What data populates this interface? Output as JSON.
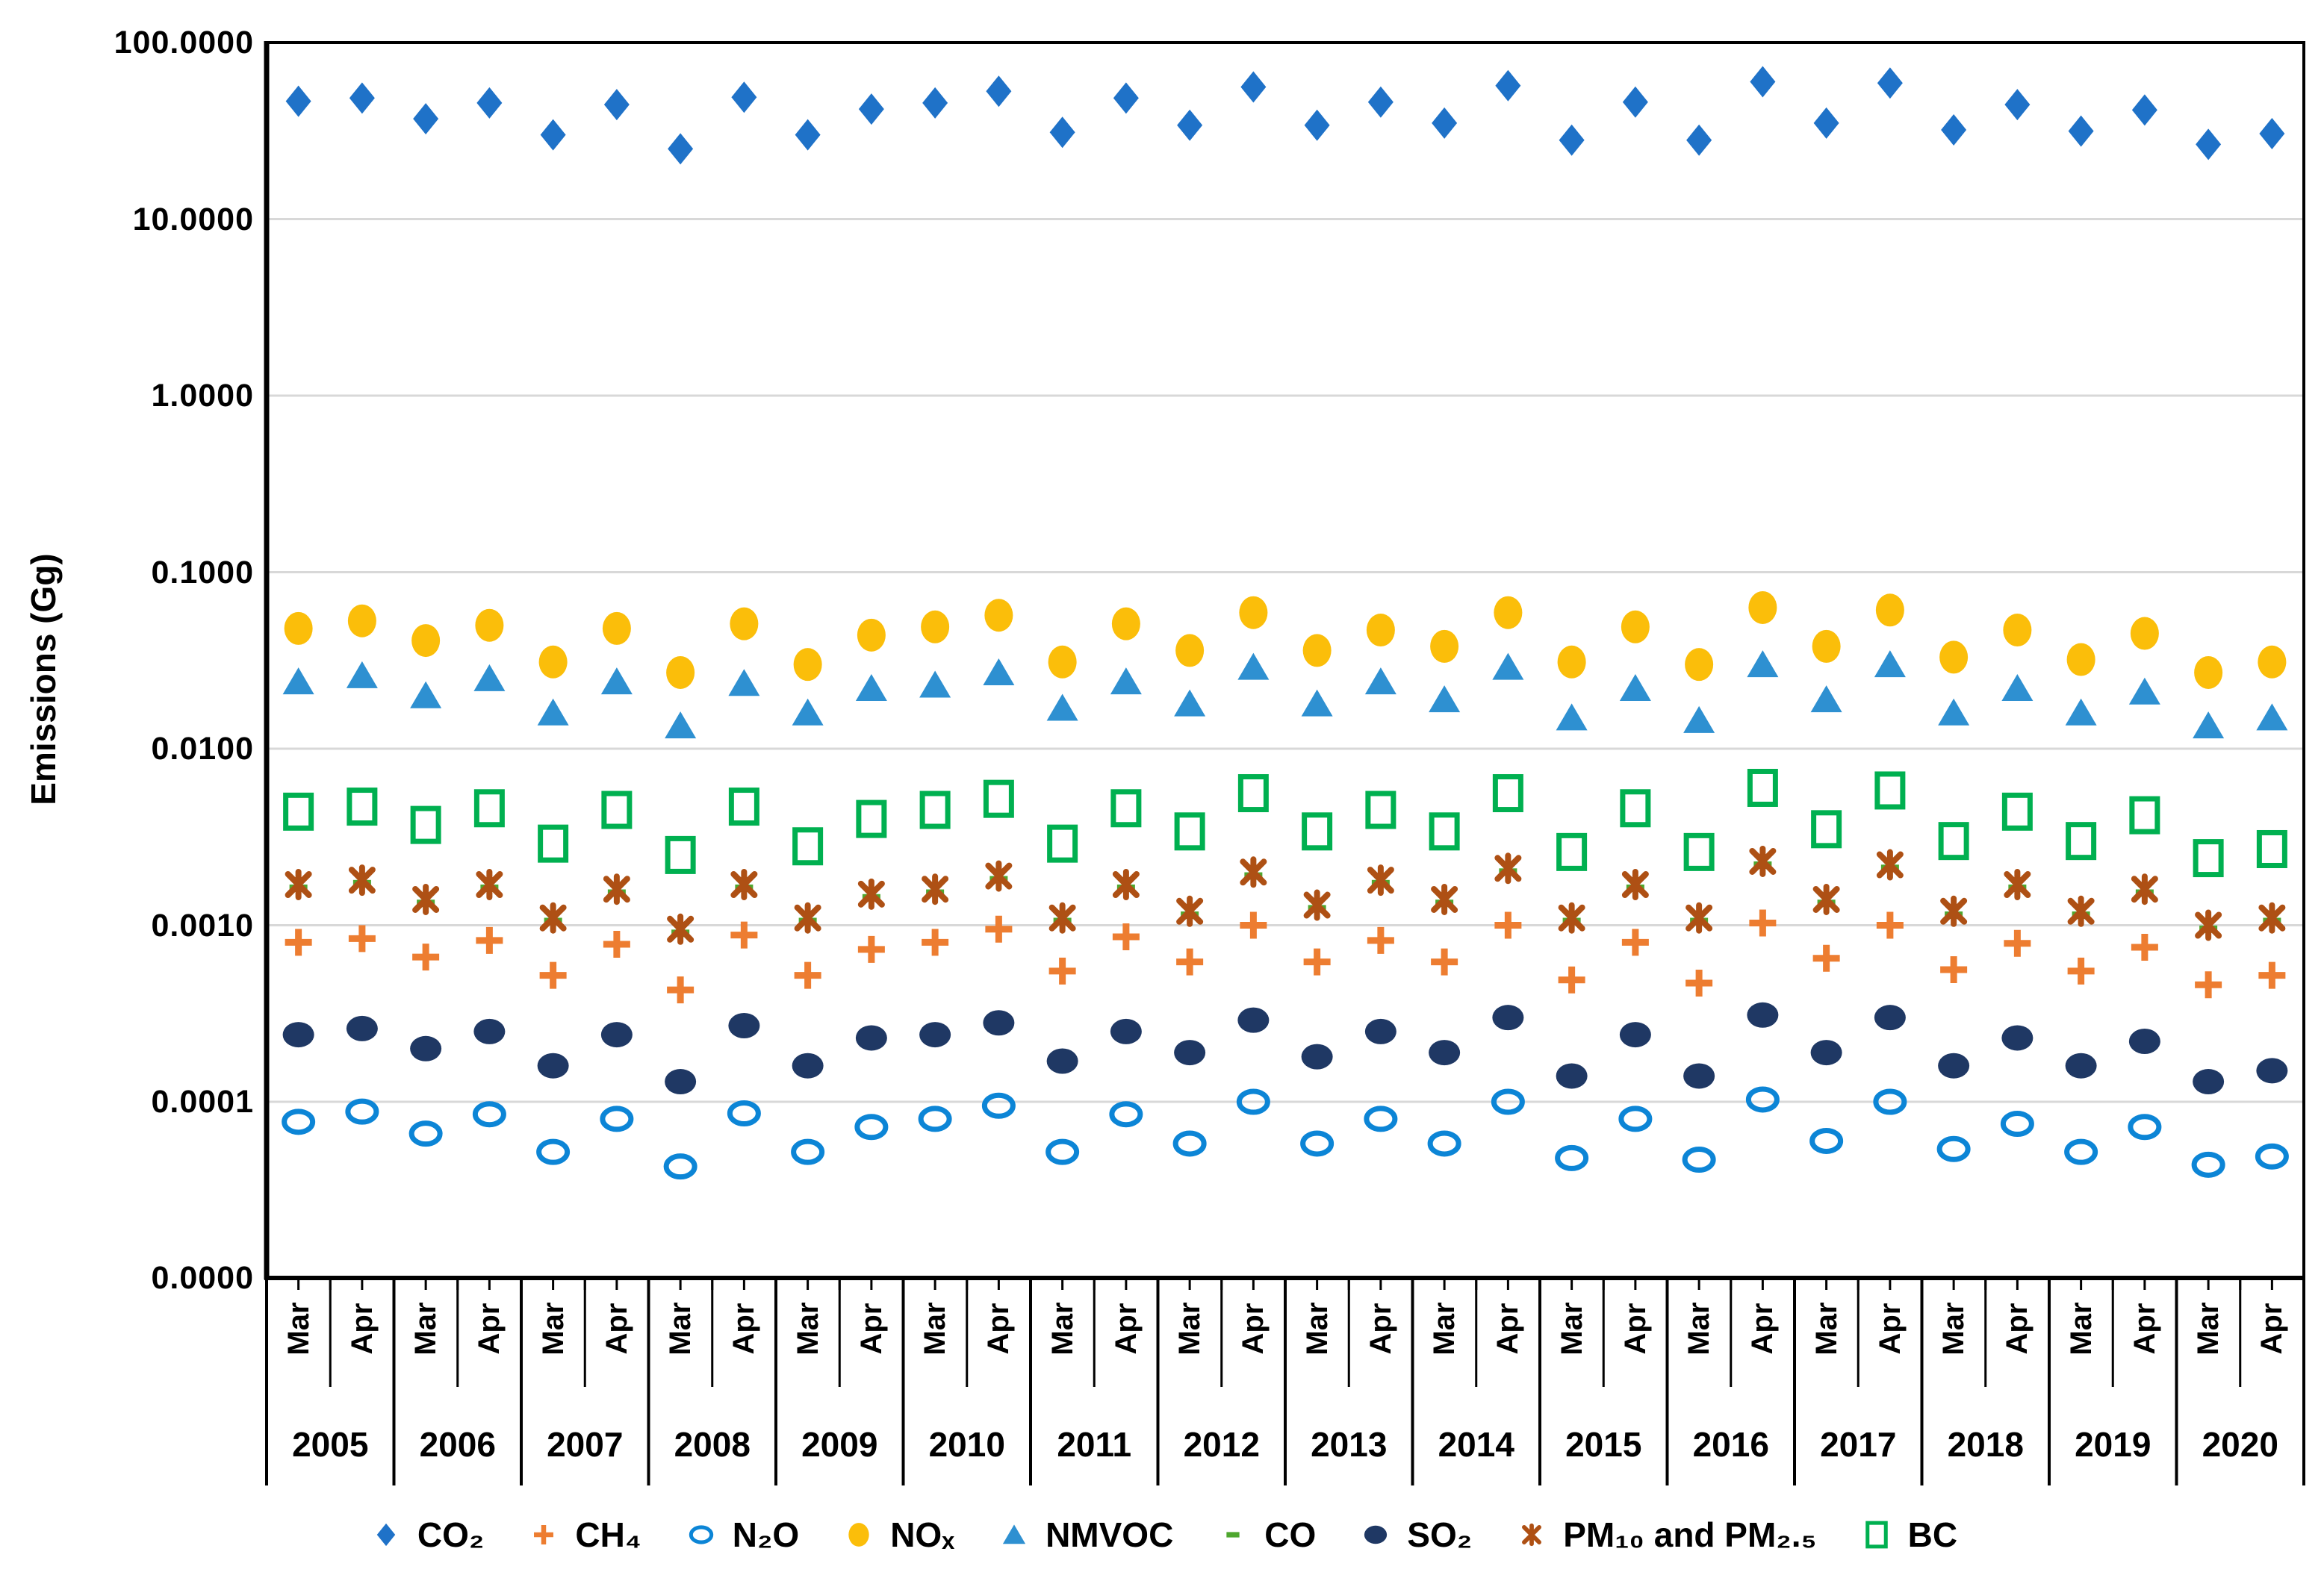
{
  "chart_data": {
    "type": "scatter",
    "title": "",
    "ylabel": "Emissions (Gg)",
    "y_scale": "log",
    "y_top_value": 100,
    "y_tick_labels": [
      "100.0000",
      "10.0000",
      "1.0000",
      "0.1000",
      "0.0100",
      "0.0010",
      "0.0001",
      "0.0000"
    ],
    "y_gridline_values": [
      10,
      1,
      0.1,
      0.01,
      0.001,
      0.0001
    ],
    "grid_color": "#D8D8D8",
    "legend_position": "bottom",
    "x": {
      "years": [
        "2005",
        "2006",
        "2007",
        "2008",
        "2009",
        "2010",
        "2011",
        "2012",
        "2013",
        "2014",
        "2015",
        "2016",
        "2017",
        "2018",
        "2019",
        "2020"
      ],
      "months_per_year": [
        "Mar",
        "Apr"
      ]
    },
    "series": [
      {
        "name": "co2",
        "label": "CO₂",
        "marker": "diamond",
        "color": "#1F72C8",
        "values": [
          46.5,
          48.5,
          37,
          45.5,
          30,
          44.5,
          25,
          49,
          30,
          42,
          45.5,
          53,
          31,
          48.5,
          34,
          56,
          34,
          46,
          35,
          57,
          28,
          46,
          28,
          60,
          35,
          59,
          32,
          44.5,
          31.5,
          41.5,
          26.5,
          30.5
        ]
      },
      {
        "name": "ch4",
        "label": "CH₄",
        "marker": "plus",
        "color": "#ED7D31",
        "values": [
          0.0008,
          0.00084,
          0.00066,
          0.00082,
          0.00052,
          0.00078,
          0.00043,
          0.00088,
          0.00052,
          0.00073,
          0.0008,
          0.00095,
          0.00055,
          0.00086,
          0.00062,
          0.001,
          0.00062,
          0.00082,
          0.00062,
          0.001,
          0.00049,
          0.0008,
          0.00047,
          0.00103,
          0.00065,
          0.001,
          0.00056,
          0.00079,
          0.00055,
          0.00075,
          0.00046,
          0.00052
        ]
      },
      {
        "name": "n2o",
        "label": "N₂O",
        "marker": "open-ellipse",
        "color": "#0C85D6",
        "values": [
          7.7e-05,
          8.8e-05,
          6.6e-05,
          8.5e-05,
          5.2e-05,
          8e-05,
          4.3e-05,
          8.6e-05,
          5.2e-05,
          7.2e-05,
          8e-05,
          9.5e-05,
          5.2e-05,
          8.5e-05,
          5.8e-05,
          0.0001,
          5.8e-05,
          8e-05,
          5.8e-05,
          0.0001,
          4.8e-05,
          8e-05,
          4.7e-05,
          0.000103,
          6e-05,
          0.0001,
          5.4e-05,
          7.5e-05,
          5.2e-05,
          7.2e-05,
          4.4e-05,
          4.9e-05
        ]
      },
      {
        "name": "nox",
        "label": "NOₓ",
        "marker": "ellipse",
        "color": "#FBBE0A",
        "values": [
          0.048,
          0.053,
          0.041,
          0.05,
          0.031,
          0.048,
          0.027,
          0.051,
          0.03,
          0.044,
          0.049,
          0.057,
          0.031,
          0.051,
          0.036,
          0.059,
          0.036,
          0.047,
          0.038,
          0.059,
          0.031,
          0.049,
          0.03,
          0.063,
          0.038,
          0.061,
          0.033,
          0.047,
          0.032,
          0.045,
          0.027,
          0.031
        ]
      },
      {
        "name": "nmvoc",
        "label": "NMVOC",
        "marker": "triangle",
        "color": "#2E90D1",
        "values": [
          0.024,
          0.026,
          0.02,
          0.025,
          0.016,
          0.024,
          0.0135,
          0.0235,
          0.016,
          0.022,
          0.023,
          0.027,
          0.017,
          0.024,
          0.018,
          0.029,
          0.018,
          0.024,
          0.019,
          0.029,
          0.015,
          0.022,
          0.0145,
          0.03,
          0.019,
          0.03,
          0.016,
          0.022,
          0.016,
          0.021,
          0.0135,
          0.015
        ]
      },
      {
        "name": "co",
        "label": "CO",
        "marker": "dash",
        "color": "#4EA72E",
        "values": [
          0.00162,
          0.00172,
          0.00133,
          0.00162,
          0.00105,
          0.00152,
          0.0009,
          0.00162,
          0.00105,
          0.00143,
          0.00152,
          0.00181,
          0.00105,
          0.00162,
          0.00114,
          0.0019,
          0.00124,
          0.00172,
          0.00133,
          0.002,
          0.00105,
          0.00162,
          0.00105,
          0.00219,
          0.00133,
          0.0021,
          0.00114,
          0.00162,
          0.00114,
          0.00152,
          0.00095,
          0.00105
        ]
      },
      {
        "name": "so2",
        "label": "SO₂",
        "marker": "ellipse-flat",
        "color": "#1F3864",
        "values": [
          0.00024,
          0.00026,
          0.0002,
          0.00025,
          0.00016,
          0.00024,
          0.00013,
          0.00027,
          0.00016,
          0.00023,
          0.00024,
          0.00028,
          0.00017,
          0.00025,
          0.00019,
          0.00029,
          0.00018,
          0.00025,
          0.00019,
          0.0003,
          0.00014,
          0.00024,
          0.00014,
          0.00031,
          0.00019,
          0.0003,
          0.00016,
          0.00023,
          0.00016,
          0.00022,
          0.00013,
          0.00015
        ]
      },
      {
        "name": "pm10-pm25",
        "label": "PM₁₀ and PM₂.₅",
        "marker": "asterisk",
        "color": "#AE5014",
        "values": [
          0.0017,
          0.0018,
          0.0014,
          0.0017,
          0.0011,
          0.0016,
          0.00095,
          0.0017,
          0.0011,
          0.0015,
          0.0016,
          0.0019,
          0.0011,
          0.0017,
          0.0012,
          0.002,
          0.0013,
          0.0018,
          0.0014,
          0.0021,
          0.0011,
          0.0017,
          0.0011,
          0.0023,
          0.0014,
          0.0022,
          0.0012,
          0.0017,
          0.0012,
          0.0016,
          0.001,
          0.0011
        ]
      },
      {
        "name": "bc",
        "label": "BC",
        "marker": "open-square",
        "color": "#00B050",
        "values": [
          0.0044,
          0.0047,
          0.0037,
          0.0046,
          0.0029,
          0.0045,
          0.0025,
          0.0047,
          0.0028,
          0.004,
          0.0045,
          0.0052,
          0.0029,
          0.0046,
          0.0034,
          0.0056,
          0.0034,
          0.0045,
          0.0034,
          0.0056,
          0.0026,
          0.0046,
          0.0026,
          0.006,
          0.0035,
          0.0058,
          0.003,
          0.0044,
          0.003,
          0.0042,
          0.0024,
          0.0027
        ]
      }
    ]
  }
}
